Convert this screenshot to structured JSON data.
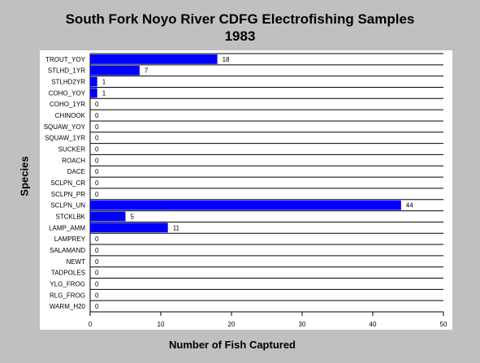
{
  "chart_data": {
    "type": "bar",
    "orientation": "horizontal",
    "title": "South Fork Noyo River CDFG Electrofishing Samples",
    "subtitle": "1983",
    "xlabel": "Number of Fish Captured",
    "ylabel": "Species",
    "xlim": [
      0,
      50
    ],
    "xticks": [
      0,
      10,
      20,
      30,
      40,
      50
    ],
    "grid": "horizontal lines between categories",
    "legend": "none",
    "bar_color": "#0000ff",
    "categories": [
      "TROUT_YOY",
      "STLHD_1YR",
      "STLHD2YR",
      "COHO_YOY",
      "COHO_1YR",
      "CHINOOK",
      "SQUAW_YOY",
      "SQUAW_1YR",
      "SUCKER",
      "ROACH",
      "DACE",
      "SCLPN_CR",
      "SCLPN_PR",
      "SCLPN_UN",
      "STCKLBK",
      "LAMP_AMM",
      "LAMPREY",
      "SALAMAND",
      "NEWT",
      "TADPOLES",
      "YLG_FROG",
      "RLG_FROG",
      "WARM_H20"
    ],
    "values": [
      18,
      7,
      1,
      1,
      0,
      0,
      0,
      0,
      0,
      0,
      0,
      0,
      0,
      44,
      5,
      11,
      0,
      0,
      0,
      0,
      0,
      0,
      0
    ]
  }
}
